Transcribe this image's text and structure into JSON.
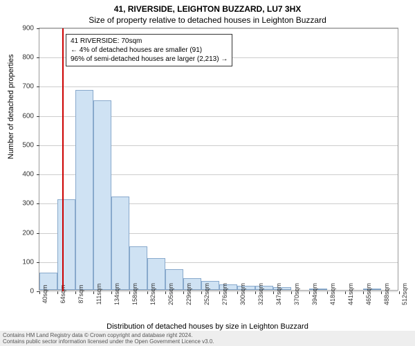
{
  "title_main": "41, RIVERSIDE, LEIGHTON BUZZARD, LU7 3HX",
  "title_sub": "Size of property relative to detached houses in Leighton Buzzard",
  "y_axis_title": "Number of detached properties",
  "x_axis_title": "Distribution of detached houses by size in Leighton Buzzard",
  "chart": {
    "type": "histogram",
    "background_color": "#ffffff",
    "grid_color": "#cccccc",
    "border_color": "#999999",
    "bar_fill": "#cfe2f3",
    "bar_border": "#88a9cc",
    "marker_color": "#cc0000",
    "ylim": [
      0,
      900
    ],
    "yticks": [
      0,
      100,
      200,
      300,
      400,
      500,
      600,
      700,
      800,
      900
    ],
    "xunit": "sqm",
    "xticks": [
      40,
      64,
      87,
      111,
      134,
      158,
      182,
      205,
      229,
      252,
      276,
      300,
      323,
      347,
      370,
      394,
      418,
      441,
      465,
      488,
      512
    ],
    "bar_values": [
      60,
      310,
      685,
      650,
      320,
      150,
      110,
      70,
      40,
      30,
      20,
      15,
      15,
      10,
      0,
      5,
      0,
      0,
      5,
      0
    ],
    "marker_x": 70,
    "label_fontsize": 10,
    "tick_fontsize": 9,
    "title_fontsize": 12
  },
  "info_box": {
    "line1": "41 RIVERSIDE: 70sqm",
    "line2": "← 4% of detached houses are smaller (91)",
    "line3": "96% of semi-detached houses are larger (2,213) →"
  },
  "footer": {
    "line1": "Contains HM Land Registry data © Crown copyright and database right 2024.",
    "line2": "Contains public sector information licensed under the Open Government Licence v3.0."
  }
}
